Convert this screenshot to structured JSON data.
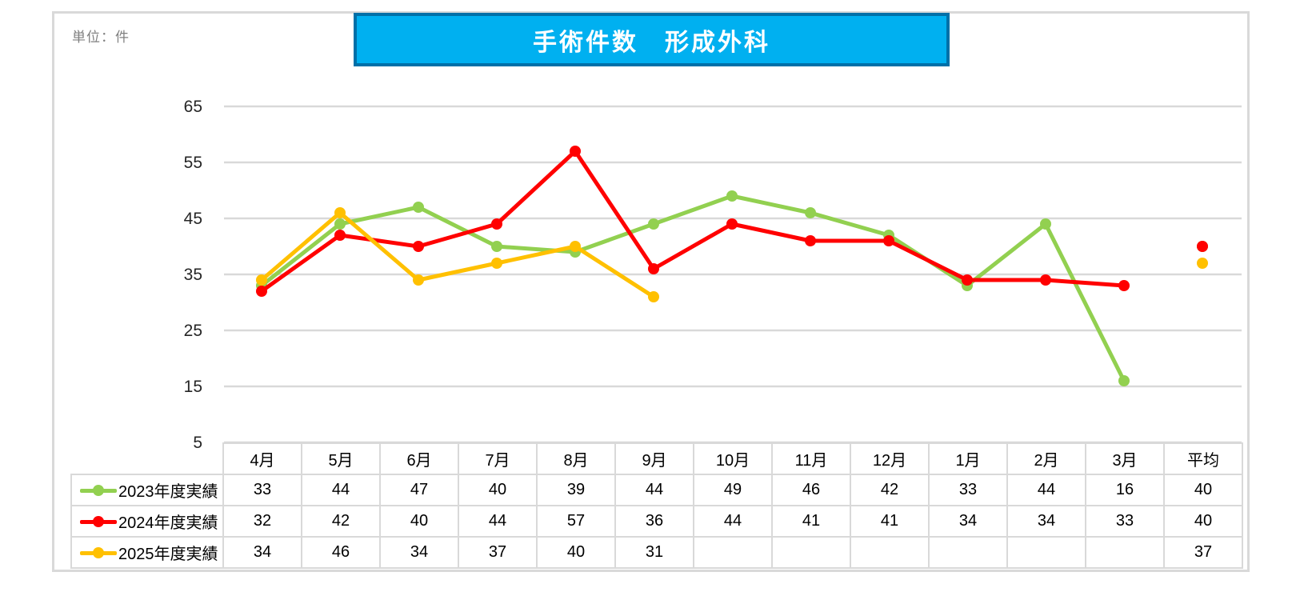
{
  "unit_label": "単位：件",
  "title": "手術件数　形成外科",
  "colors": {
    "title_fill": "#00B0F0",
    "title_border": "#0070A8",
    "grid": "#D9D9D9",
    "axis_text": "#262626",
    "unit_text": "#7F7F7F",
    "table_border": "#D9D9D9"
  },
  "chart_data": {
    "type": "line",
    "title": "手術件数　形成外科",
    "categories": [
      "4月",
      "5月",
      "6月",
      "7月",
      "8月",
      "9月",
      "10月",
      "11月",
      "12月",
      "1月",
      "2月",
      "3月"
    ],
    "average_label": "平均",
    "yticks": [
      65,
      55,
      45,
      35,
      25,
      15,
      5
    ],
    "ylim": [
      5,
      65
    ],
    "grid": true,
    "legend_position": "table-rows-left",
    "series": [
      {
        "name": "2023年度実績",
        "color": "#92D050",
        "values": [
          33,
          44,
          47,
          40,
          39,
          44,
          49,
          46,
          42,
          33,
          44,
          16
        ],
        "average": 40
      },
      {
        "name": "2024年度実績",
        "color": "#FF0000",
        "values": [
          32,
          42,
          40,
          44,
          57,
          36,
          44,
          41,
          41,
          34,
          34,
          33
        ],
        "average": 40
      },
      {
        "name": "2025年度実績",
        "color": "#FFC000",
        "values": [
          34,
          46,
          34,
          37,
          40,
          31,
          null,
          null,
          null,
          null,
          null,
          null
        ],
        "average": 37
      }
    ]
  }
}
